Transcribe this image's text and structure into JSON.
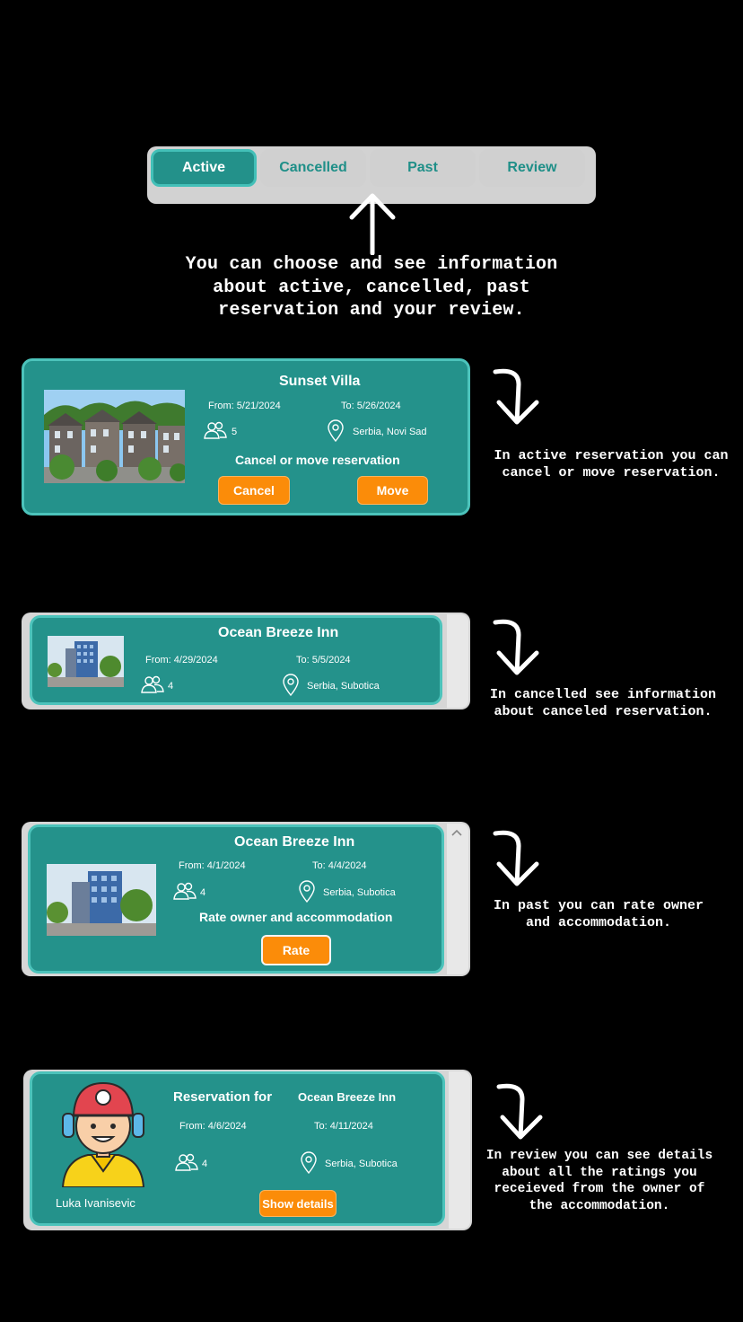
{
  "tabs": [
    {
      "label": "Active"
    },
    {
      "label": "Cancelled"
    },
    {
      "label": "Past"
    },
    {
      "label": "Review"
    }
  ],
  "intro_note": "You can choose and see information about active, cancelled, past reservation and your review.",
  "active_card": {
    "title": "Sunset Villa",
    "from": "From: 5/21/2024",
    "to": "To: 5/26/2024",
    "guests": "5",
    "location": "Serbia, Novi Sad",
    "action_text": "Cancel or move reservation",
    "cancel_label": "Cancel",
    "move_label": "Move",
    "note": "In active reservation you can cancel or move reservation."
  },
  "cancelled_card": {
    "title": "Ocean Breeze Inn",
    "from": "From: 4/29/2024",
    "to": "To: 5/5/2024",
    "guests": "4",
    "location": "Serbia, Subotica",
    "note": "In cancelled see information about canceled reservation."
  },
  "past_card": {
    "title": "Ocean Breeze Inn",
    "from": "From: 4/1/2024",
    "to": "To: 4/4/2024",
    "guests": "4",
    "location": "Serbia, Subotica",
    "action_text": "Rate owner and accommodation",
    "rate_label": "Rate",
    "note": "In past you can rate owner and accommodation."
  },
  "review_card": {
    "heading": "Reservation for",
    "title": "Ocean Breeze Inn",
    "from": "From: 4/6/2024",
    "to": "To: 4/11/2024",
    "guests": "4",
    "location": "Serbia, Subotica",
    "user_name": "Luka Ivanisevic",
    "details_label": "Show details",
    "note": "In review you can see details about all the ratings you receieved from the owner of the accommodation."
  },
  "icons": {
    "guests": "people-icon",
    "location": "map-pin-icon",
    "arrow": "curved-arrow-down-icon",
    "up_arrow": "arrow-up-icon",
    "scroll": "chevron-up-icon"
  },
  "colors": {
    "card_bg": "#24928b",
    "card_border": "#4cc3bb",
    "button_orange": "#fb8c09",
    "tab_text": "#1f8f88"
  }
}
